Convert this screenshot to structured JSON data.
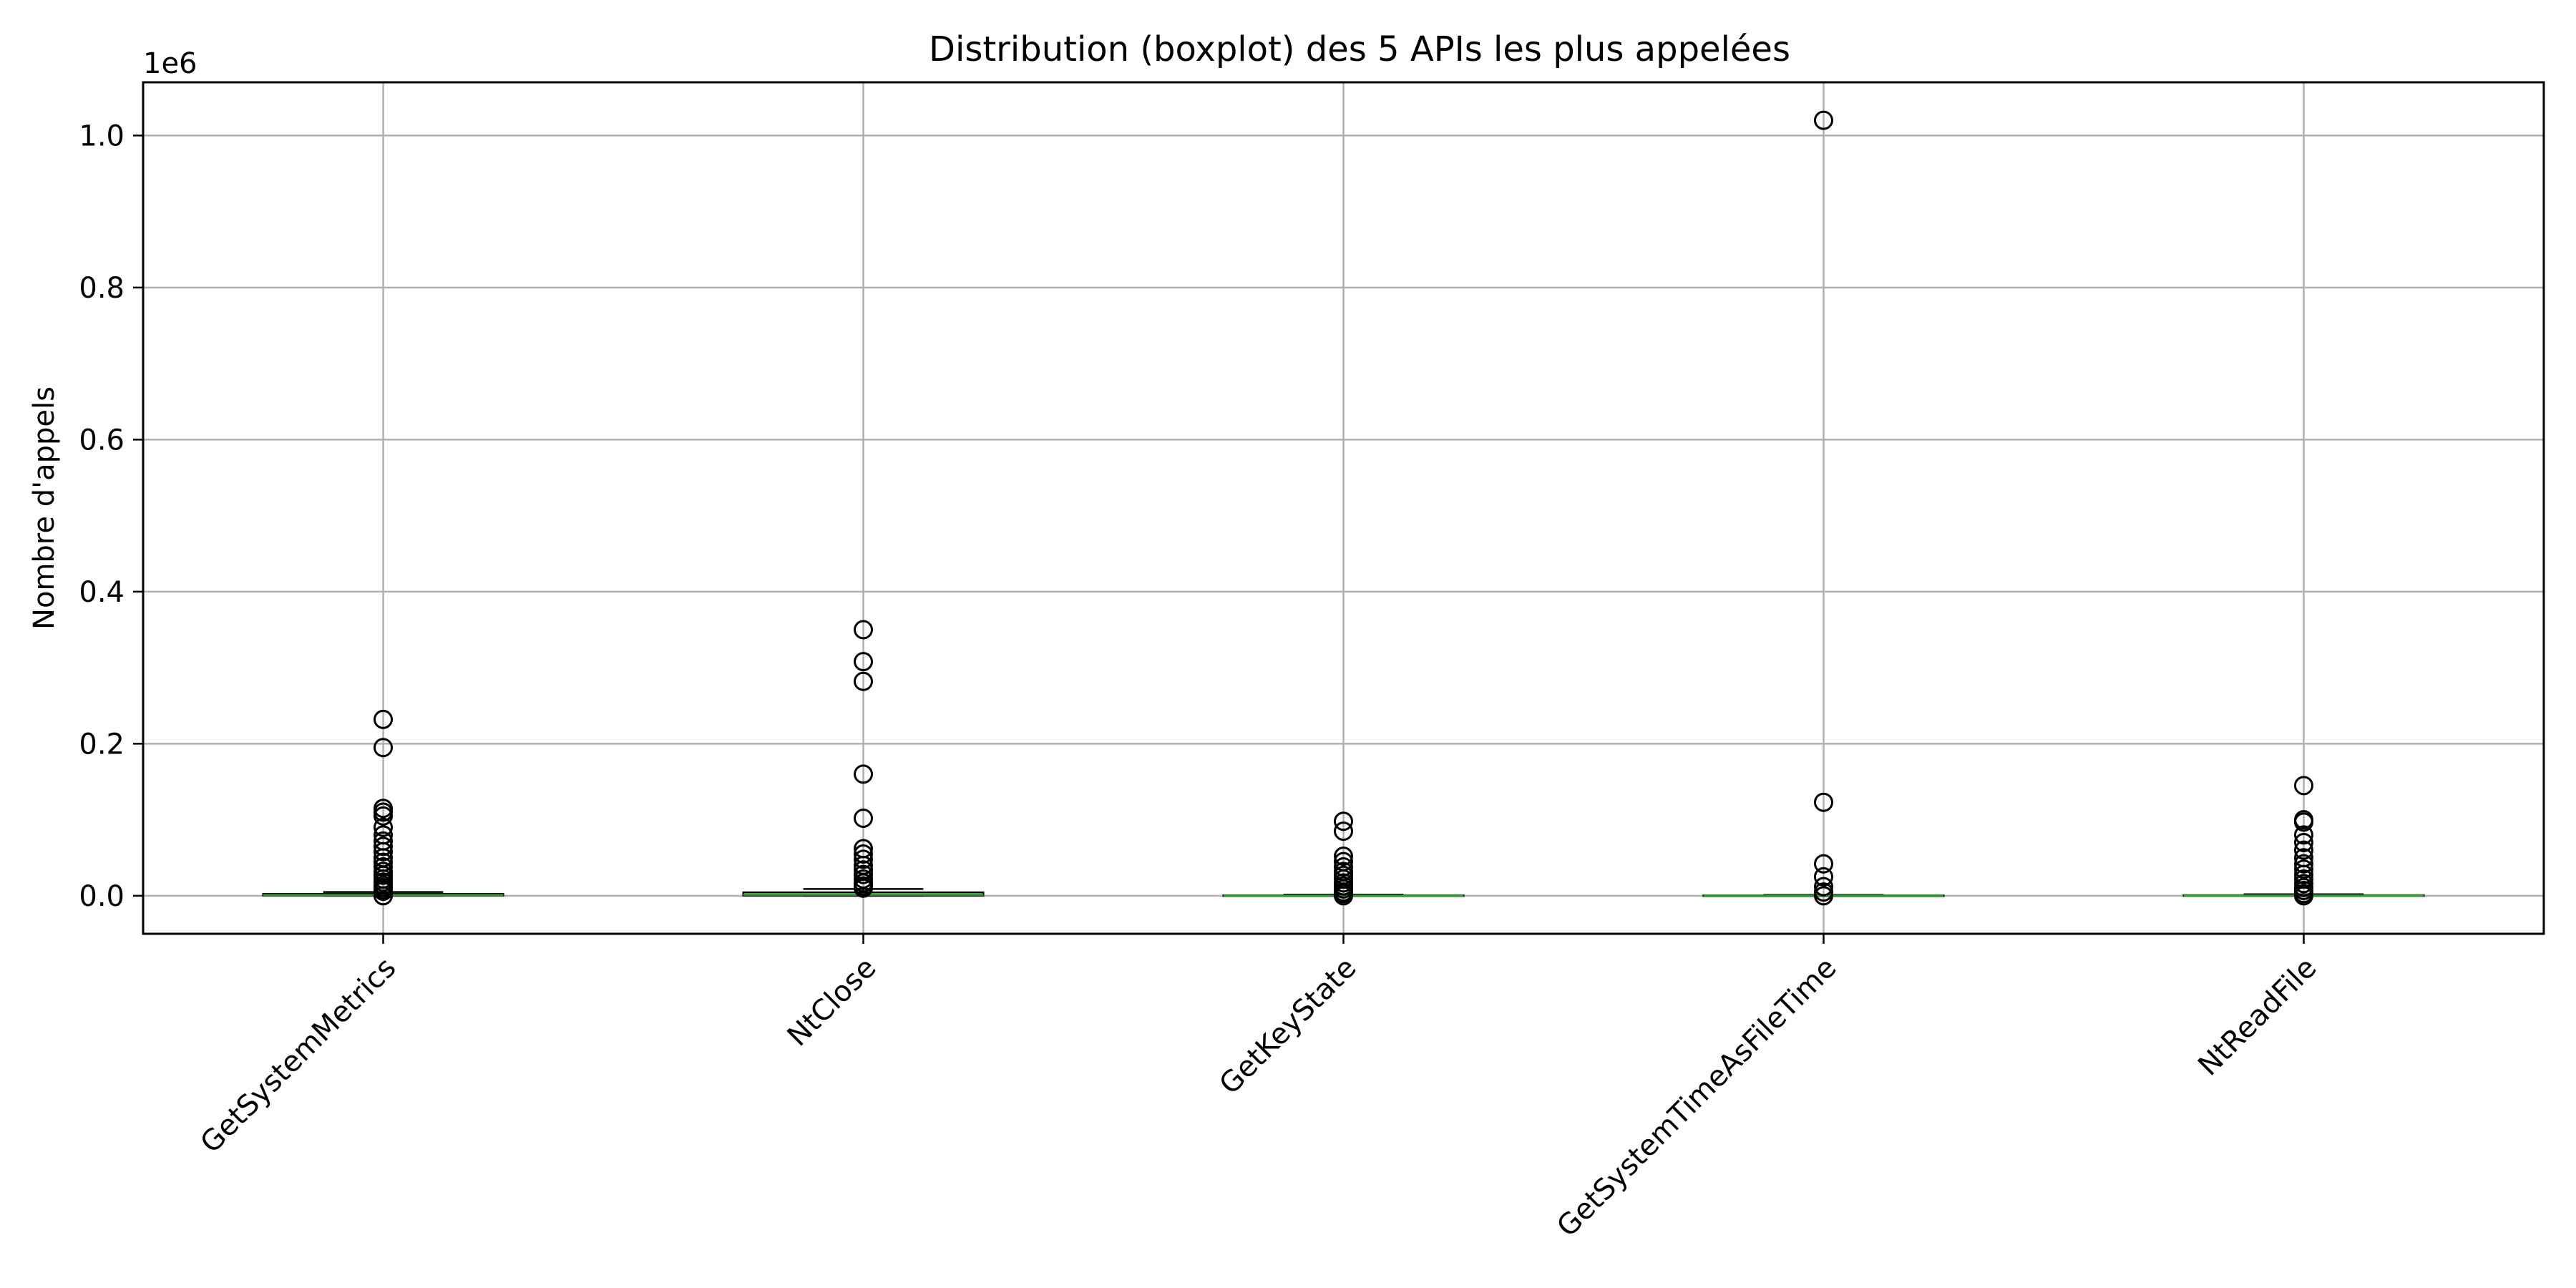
{
  "chart_data": {
    "type": "boxplot",
    "title": "Distribution (boxplot) des 5 APIs les plus appelées",
    "xlabel": "",
    "ylabel": "Nombre d'appels",
    "y_offset_label": "1e6",
    "ylim": [
      -50000,
      1070000
    ],
    "yticks": [
      0.0,
      0.2,
      0.4,
      0.6,
      0.8,
      1.0
    ],
    "grid": true,
    "categories": [
      "GetSystemMetrics",
      "NtClose",
      "GetKeyState",
      "GetSystemTimeAsFileTime",
      "NtReadFile"
    ],
    "boxes": [
      {
        "name": "GetSystemMetrics",
        "whislo": 0,
        "q1": 200,
        "median": 800,
        "q3": 2500,
        "whishi": 5000,
        "fliers": [
          232000,
          195000,
          115000,
          110000,
          105000,
          90000,
          80000,
          72000,
          65000,
          58000,
          50000,
          44000,
          38000,
          32000,
          27000,
          22000,
          18000,
          14000,
          11000,
          8000,
          6000,
          0
        ]
      },
      {
        "name": "NtClose",
        "whislo": 0,
        "q1": 300,
        "median": 1500,
        "q3": 4500,
        "whishi": 9000,
        "fliers": [
          350000,
          308000,
          282000,
          160000,
          102000,
          62000,
          55000,
          48000,
          40000,
          34000,
          28000,
          22000,
          17000,
          13000,
          10000
        ]
      },
      {
        "name": "GetKeyState",
        "whislo": 0,
        "q1": 0,
        "median": 100,
        "q3": 600,
        "whishi": 1500,
        "fliers": [
          98000,
          85000,
          52000,
          45000,
          38000,
          32000,
          27000,
          22000,
          17000,
          13000,
          9000,
          5000,
          3000,
          0
        ]
      },
      {
        "name": "GetSystemTimeAsFileTime",
        "whislo": 0,
        "q1": 0,
        "median": 100,
        "q3": 500,
        "whishi": 1200,
        "fliers": [
          1020000,
          123000,
          42000,
          25000,
          12000,
          5000,
          0
        ]
      },
      {
        "name": "NtReadFile",
        "whislo": 0,
        "q1": 0,
        "median": 200,
        "q3": 800,
        "whishi": 2000,
        "fliers": [
          145000,
          100000,
          97000,
          80000,
          70000,
          60000,
          50000,
          42000,
          35000,
          28000,
          22000,
          16000,
          11000,
          7000,
          3000,
          0
        ]
      }
    ],
    "colors": {
      "box": "#000000",
      "median": "#2ca02c",
      "grid": "#b0b0b0",
      "flier": "#000000"
    }
  }
}
